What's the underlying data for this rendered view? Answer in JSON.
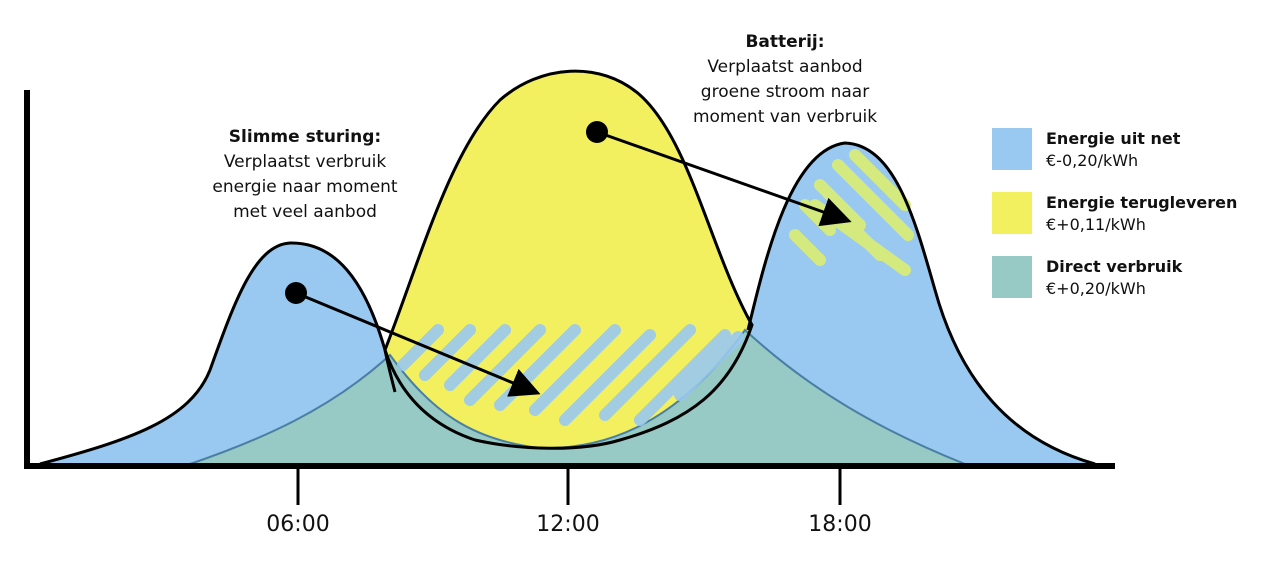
{
  "annotations": {
    "smart": {
      "title": "Slimme sturing:",
      "lines": [
        "Verplaatst verbruik",
        "energie naar moment",
        "met veel aanbod"
      ]
    },
    "battery": {
      "title": "Batterij:",
      "lines": [
        "Verplaatst aanbod",
        "groene stroom naar",
        "moment van verbruik"
      ]
    }
  },
  "x_ticks": [
    "06:00",
    "12:00",
    "18:00"
  ],
  "legend": [
    {
      "name": "Energie uit net",
      "price": "€-0,20/kWh",
      "color": "#99c9f0"
    },
    {
      "name": "Energie terugleveren",
      "price": "€+0,11/kWh",
      "color": "#f3f060"
    },
    {
      "name": "Direct verbruik",
      "price": "€+0,20/kWh",
      "color": "#97c9c5"
    }
  ],
  "colors": {
    "axis": "#000000",
    "outline": "#000000",
    "green_outline": "#4a7fa3",
    "stripes_blue": "#99c9f0",
    "stripes_yellow": "#d8ec78"
  }
}
